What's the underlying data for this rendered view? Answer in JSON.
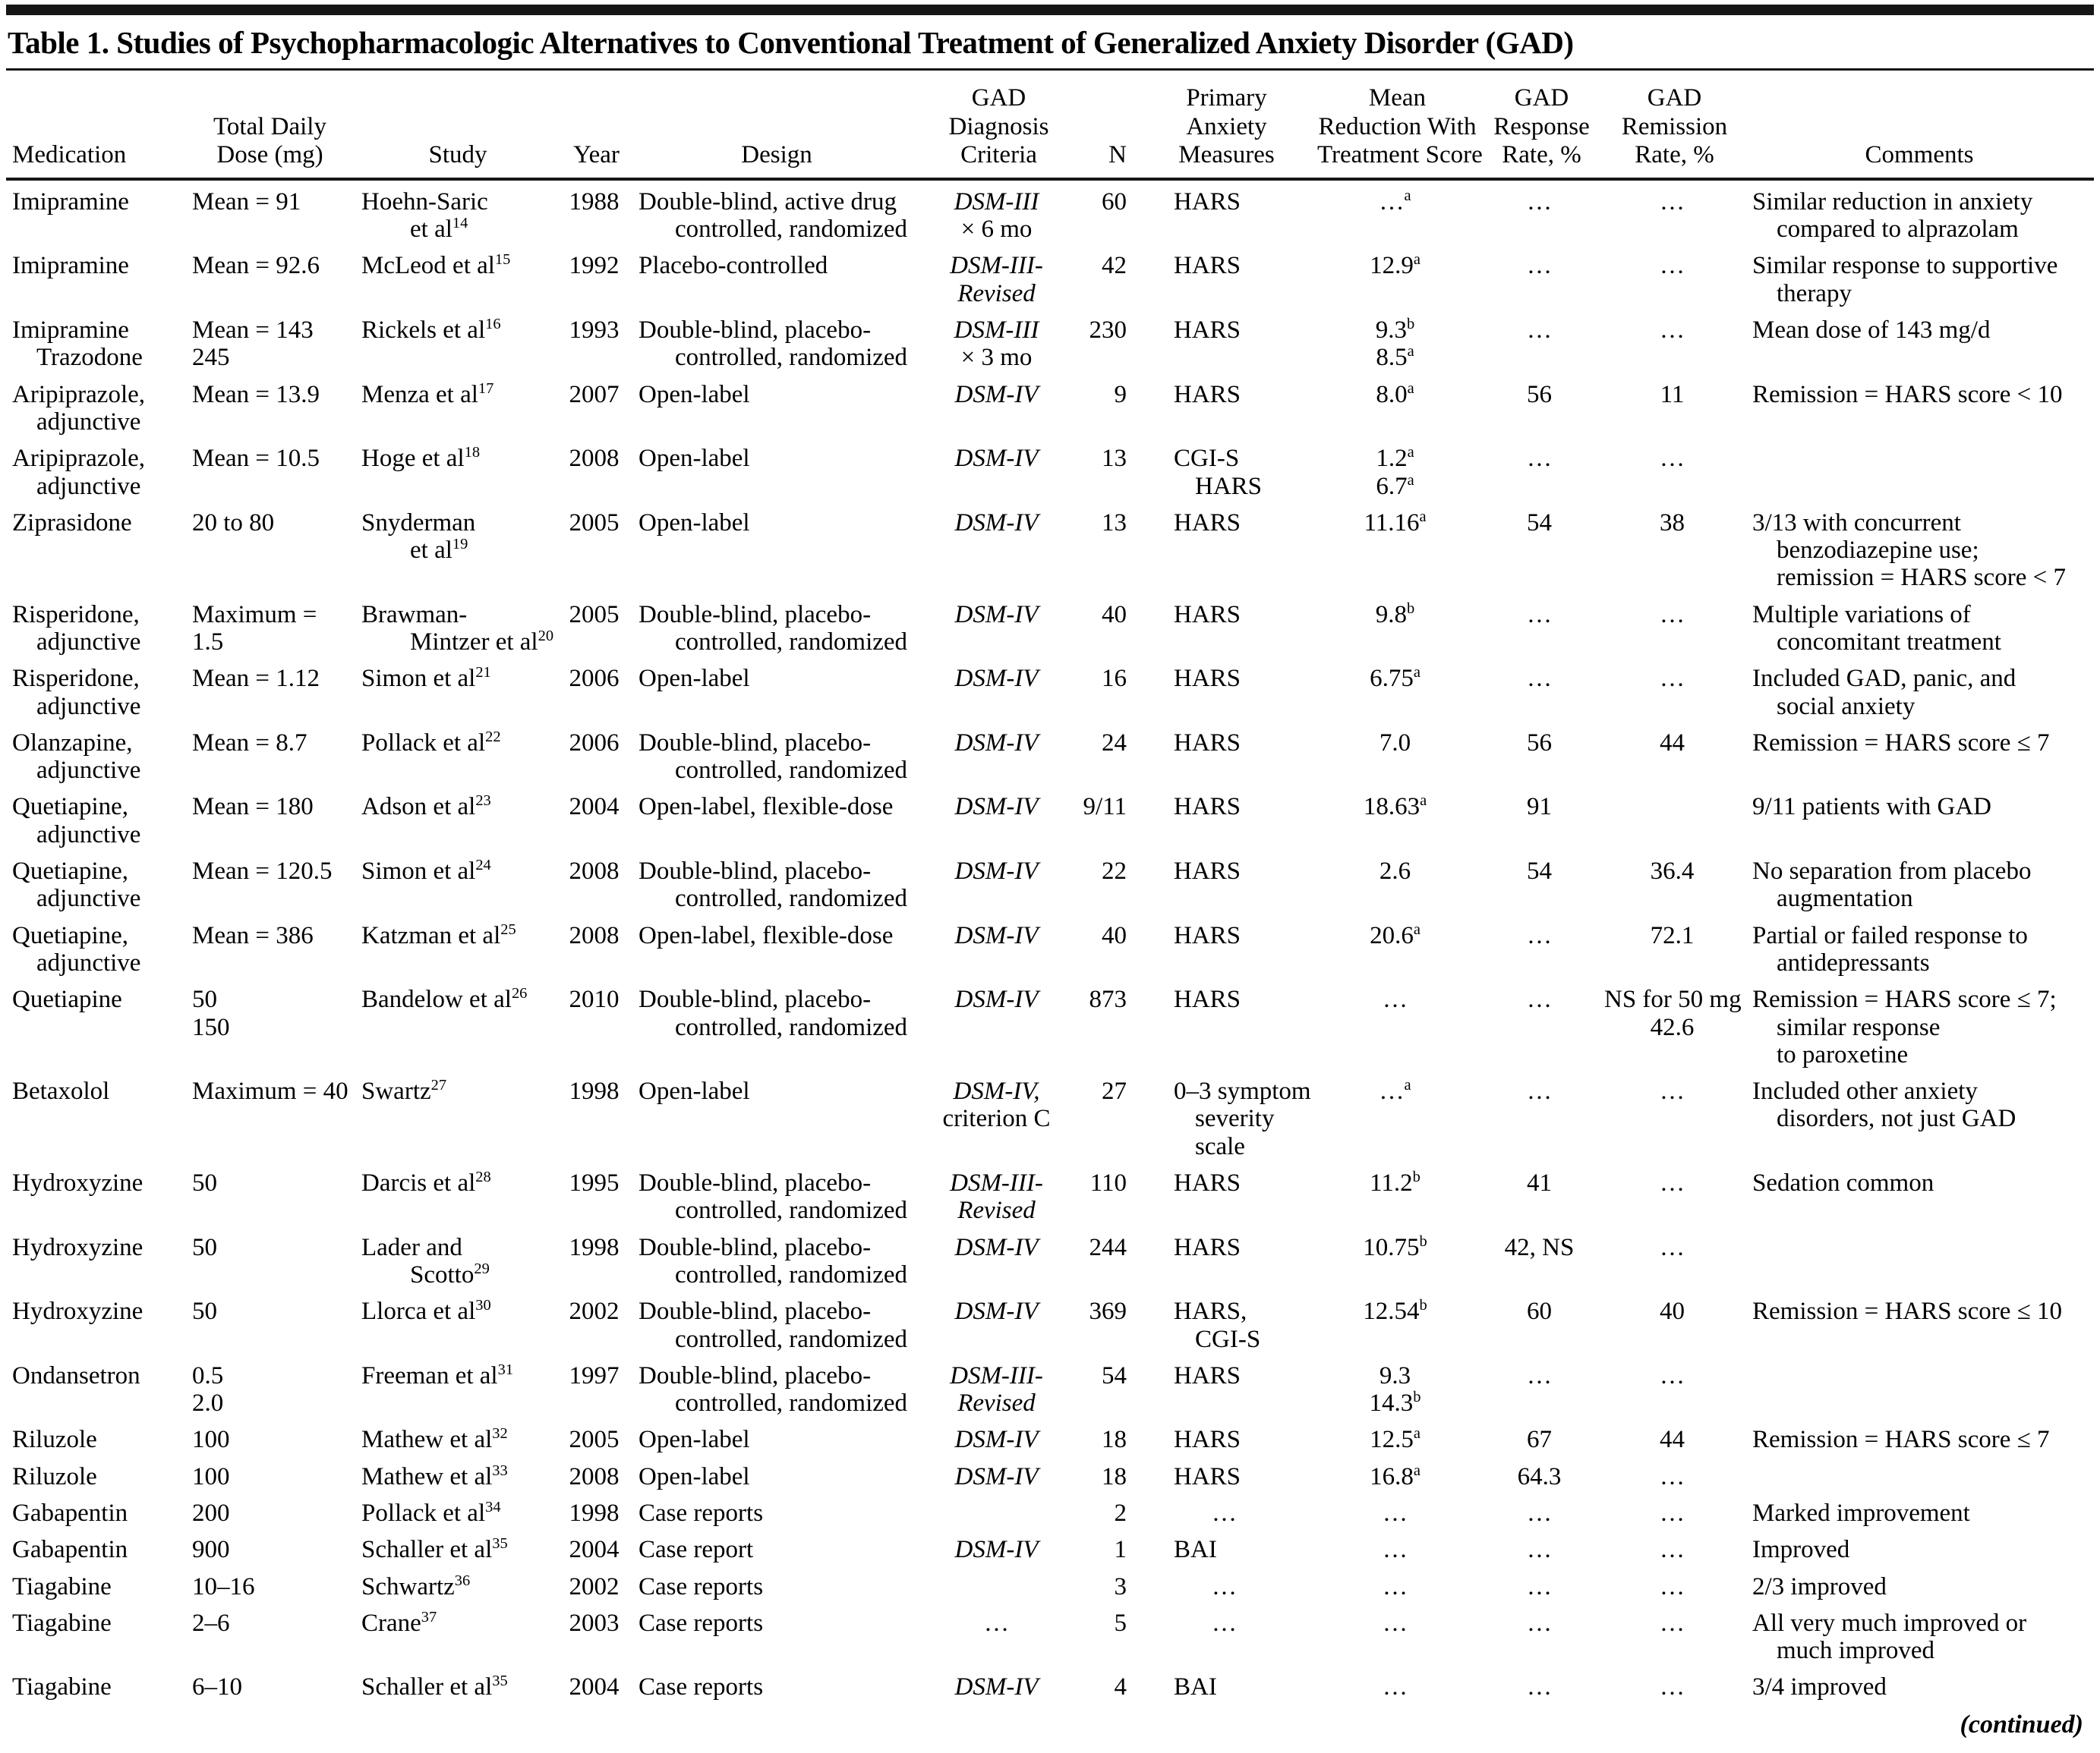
{
  "table": {
    "title": "Table 1. Studies of Psychopharmacologic Alternatives to Conventional Treatment of Generalized Anxiety Disorder (GAD)",
    "continued_note": "(continued)",
    "columns": [
      {
        "id": "medication",
        "label": "Medication"
      },
      {
        "id": "total_daily_dose",
        "label": "Total Daily\nDose (mg)"
      },
      {
        "id": "study",
        "label": "Study"
      },
      {
        "id": "year",
        "label": "Year"
      },
      {
        "id": "design",
        "label": "Design"
      },
      {
        "id": "gad_diagnosis_criteria",
        "label": "GAD\nDiagnosis\nCriteria"
      },
      {
        "id": "n",
        "label": "N"
      },
      {
        "id": "primary_anxiety_measures",
        "label": "Primary\nAnxiety\nMeasures"
      },
      {
        "id": "mean_reduction_with_treatment_score",
        "label": "Mean\nReduction With\nTreatment Score"
      },
      {
        "id": "gad_response_rate",
        "label": "GAD\nResponse\nRate, %"
      },
      {
        "id": "gad_remission_rate",
        "label": "GAD\nRemission\nRate, %"
      },
      {
        "id": "comments",
        "label": "Comments"
      }
    ],
    "rows": [
      [
        "Imipramine",
        "Mean = 91",
        "Hoehn-Saric\net al^{14}",
        "1988",
        "Double-blind, active drug\ncontrolled, randomized",
        "*DSM-III*\n× 6 mo",
        "60",
        "HARS",
        "…^{a}",
        "…",
        "…",
        "Similar reduction in anxiety\ncompared to alprazolam"
      ],
      [
        "Imipramine",
        "Mean = 92.6",
        "McLeod et al^{15}",
        "1992",
        "Placebo-controlled",
        "*DSM-III-*\n*Revised*",
        "42",
        "HARS",
        "12.9^{a}",
        "…",
        "…",
        "Similar response to supportive\ntherapy"
      ],
      [
        "Imipramine\nTrazodone",
        "Mean = 143\n245",
        "Rickels et al^{16}",
        "1993",
        "Double-blind, placebo-\ncontrolled, randomized",
        "*DSM-III*\n× 3 mo",
        "230",
        "HARS",
        "9.3^{b}\n8.5^{a}",
        "…",
        "…",
        "Mean dose of 143 mg/d"
      ],
      [
        "Aripiprazole,\nadjunctive",
        "Mean = 13.9",
        "Menza et al^{17}",
        "2007",
        "Open-label",
        "*DSM-IV*",
        "9",
        "HARS",
        "8.0^{a}",
        "56",
        "11",
        "Remission = HARS score < 10"
      ],
      [
        "Aripiprazole,\nadjunctive",
        "Mean = 10.5",
        "Hoge et al^{18}",
        "2008",
        "Open-label",
        "*DSM-IV*",
        "13",
        "CGI-S\nHARS",
        "1.2^{a}\n6.7^{a}",
        "…",
        "…",
        ""
      ],
      [
        "Ziprasidone",
        "20 to 80",
        "Snyderman\net al^{19}",
        "2005",
        "Open-label",
        "*DSM-IV*",
        "13",
        "HARS",
        "11.16^{a}",
        "54",
        "38",
        "3/13 with concurrent\nbenzodiazepine use;\nremission = HARS score < 7"
      ],
      [
        "Risperidone,\nadjunctive",
        "Maximum = 1.5",
        "Brawman-\nMintzer et al^{20}",
        "2005",
        "Double-blind, placebo-\ncontrolled, randomized",
        "*DSM-IV*",
        "40",
        "HARS",
        "9.8^{b}",
        "…",
        "…",
        "Multiple variations of\nconcomitant treatment"
      ],
      [
        "Risperidone,\nadjunctive",
        "Mean = 1.12",
        "Simon et al^{21}",
        "2006",
        "Open-label",
        "*DSM-IV*",
        "16",
        "HARS",
        "6.75^{a}",
        "…",
        "…",
        "Included GAD, panic, and\nsocial anxiety"
      ],
      [
        "Olanzapine,\nadjunctive",
        "Mean = 8.7",
        "Pollack et al^{22}",
        "2006",
        "Double-blind, placebo-\ncontrolled, randomized",
        "*DSM-IV*",
        "24",
        "HARS",
        "7.0",
        "56",
        "44",
        "Remission = HARS score ≤ 7"
      ],
      [
        "Quetiapine,\nadjunctive",
        "Mean = 180",
        "Adson et al^{23}",
        "2004",
        "Open-label, flexible-dose",
        "*DSM-IV*",
        "9/11",
        "HARS",
        "18.63^{a}",
        "91",
        "",
        "9/11 patients with GAD"
      ],
      [
        "Quetiapine,\nadjunctive",
        "Mean = 120.5",
        "Simon et al^{24}",
        "2008",
        "Double-blind, placebo-\ncontrolled, randomized",
        "*DSM-IV*",
        "22",
        "HARS",
        "2.6",
        "54",
        "36.4",
        "No separation from placebo\naugmentation"
      ],
      [
        "Quetiapine,\nadjunctive",
        "Mean = 386",
        "Katzman et al^{25}",
        "2008",
        "Open-label, flexible-dose",
        "*DSM-IV*",
        "40",
        "HARS",
        "20.6^{a}",
        "…",
        "72.1",
        "Partial or failed response to\nantidepressants"
      ],
      [
        "Quetiapine",
        "50\n150",
        "Bandelow et al^{26}",
        "2010",
        "Double-blind, placebo-\ncontrolled, randomized",
        "*DSM-IV*",
        "873",
        "HARS",
        "…",
        "…",
        "NS for 50 mg\n42.6",
        "Remission = HARS score ≤ 7;\nsimilar response\nto paroxetine"
      ],
      [
        "Betaxolol",
        "Maximum = 40",
        "Swartz^{27}",
        "1998",
        "Open-label",
        "*DSM-IV,*\ncriterion C",
        "27",
        "0–3 symptom\nseverity scale",
        "…^{a}",
        "…",
        "…",
        "Included other anxiety\ndisorders, not just GAD"
      ],
      [
        "Hydroxyzine",
        "50",
        "Darcis et al^{28}",
        "1995",
        "Double-blind, placebo-\ncontrolled, randomized",
        "*DSM-III-*\n*Revised*",
        "110",
        "HARS",
        "11.2^{b}",
        "41",
        "…",
        "Sedation common"
      ],
      [
        "Hydroxyzine",
        "50",
        "Lader and\nScotto^{29}",
        "1998",
        "Double-blind, placebo-\ncontrolled, randomized",
        "*DSM-IV*",
        "244",
        "HARS",
        "10.75^{b}",
        "42, NS",
        "…",
        ""
      ],
      [
        "Hydroxyzine",
        "50",
        "Llorca et al^{30}",
        "2002",
        "Double-blind, placebo-\ncontrolled, randomized",
        "*DSM-IV*",
        "369",
        "HARS,\nCGI-S",
        "12.54^{b}",
        "60",
        "40",
        "Remission = HARS score ≤ 10"
      ],
      [
        "Ondansetron",
        "0.5\n2.0",
        "Freeman et al^{31}",
        "1997",
        "Double-blind, placebo-\ncontrolled, randomized",
        "*DSM-III-*\n*Revised*",
        "54",
        "HARS",
        "9.3\n14.3^{b}",
        "…",
        "…",
        ""
      ],
      [
        "Riluzole",
        "100",
        "Mathew et al^{32}",
        "2005",
        "Open-label",
        "*DSM-IV*",
        "18",
        "HARS",
        "12.5^{a}",
        "67",
        "44",
        "Remission = HARS score ≤ 7"
      ],
      [
        "Riluzole",
        "100",
        "Mathew et al^{33}",
        "2008",
        "Open-label",
        "*DSM-IV*",
        "18",
        "HARS",
        "16.8^{a}",
        "64.3",
        "…",
        ""
      ],
      [
        "Gabapentin",
        "200",
        "Pollack et al^{34}",
        "1998",
        "Case reports",
        "",
        "2",
        "…",
        "…",
        "…",
        "…",
        "Marked improvement"
      ],
      [
        "Gabapentin",
        "900",
        "Schaller et al^{35}",
        "2004",
        "Case report",
        "*DSM-IV*",
        "1",
        "BAI",
        "…",
        "…",
        "…",
        "Improved"
      ],
      [
        "Tiagabine",
        "10–16",
        "Schwartz^{36}",
        "2002",
        "Case reports",
        "",
        "3",
        "…",
        "…",
        "…",
        "…",
        "2/3 improved"
      ],
      [
        "Tiagabine",
        "2–6",
        "Crane^{37}",
        "2003",
        "Case reports",
        "…",
        "5",
        "…",
        "…",
        "…",
        "…",
        "All very much improved or\nmuch improved"
      ],
      [
        "Tiagabine",
        "6–10",
        "Schaller et al^{35}",
        "2004",
        "Case reports",
        "*DSM-IV*",
        "4",
        "BAI",
        "…",
        "…",
        "…",
        "3/4 improved"
      ]
    ]
  }
}
